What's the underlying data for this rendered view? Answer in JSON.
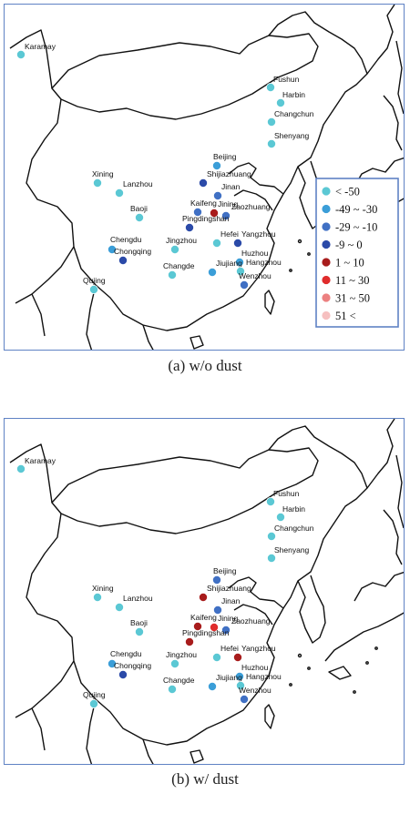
{
  "colors": {
    "frame": "#5f82c4",
    "land_line": "#111111"
  },
  "legend": {
    "items": [
      {
        "label": "< -50",
        "color": "#5bc8d4"
      },
      {
        "label": "-49 ~ -30",
        "color": "#3b9ed8"
      },
      {
        "label": "-29 ~ -10",
        "color": "#4070c4"
      },
      {
        "label": "-9 ~ 0",
        "color": "#2b4aa8"
      },
      {
        "label": "1 ~ 10",
        "color": "#a81c1c"
      },
      {
        "label": "11 ~ 30",
        "color": "#e02c2c"
      },
      {
        "label": "31 ~ 50",
        "color": "#ec8080"
      },
      {
        "label": "51 <",
        "color": "#f6c0c0"
      }
    ]
  },
  "cities": [
    "Karamay",
    "Fushun",
    "Harbin",
    "Changchun",
    "Shenyang",
    "Beijing",
    "Shijiazhuang",
    "Jinan",
    "Xining",
    "Lanzhou",
    "Kaifeng",
    "Jining",
    "Zaozhuang",
    "Pingdingshan",
    "Baoji",
    "Hefei",
    "Yangzhou",
    "Chengdu",
    "Jingzhou",
    "Chongqing",
    "Huzhou",
    "Jiujiang",
    "Hangzhou",
    "Changde",
    "Wenzhou",
    "Qujing"
  ],
  "panels": [
    {
      "caption": "(a) w/o dust",
      "show_legend": true,
      "values": {
        "Karamay": "< -50",
        "Fushun": "< -50",
        "Harbin": "< -50",
        "Changchun": "< -50",
        "Shenyang": "< -50",
        "Beijing": "-49 ~ -30",
        "Shijiazhuang": "-9 ~ 0",
        "Jinan": "-29 ~ -10",
        "Xining": "< -50",
        "Lanzhou": "< -50",
        "Kaifeng": "-29 ~ -10",
        "Jining": "1 ~ 10",
        "Zaozhuang": "-29 ~ -10",
        "Pingdingshan": "-9 ~ 0",
        "Baoji": "< -50",
        "Hefei": "< -50",
        "Yangzhou": "-9 ~ 0",
        "Chengdu": "-49 ~ -30",
        "Jingzhou": "< -50",
        "Chongqing": "-9 ~ 0",
        "Huzhou": "-49 ~ -30",
        "Jiujiang": "-49 ~ -30",
        "Hangzhou": "< -50",
        "Changde": "< -50",
        "Wenzhou": "-29 ~ -10",
        "Qujing": "< -50"
      }
    },
    {
      "caption": "(b) w/ dust",
      "show_legend": false,
      "values": {
        "Karamay": "< -50",
        "Fushun": "< -50",
        "Harbin": "< -50",
        "Changchun": "< -50",
        "Shenyang": "< -50",
        "Beijing": "-29 ~ -10",
        "Shijiazhuang": "1 ~ 10",
        "Jinan": "-29 ~ -10",
        "Xining": "< -50",
        "Lanzhou": "< -50",
        "Kaifeng": "1 ~ 10",
        "Jining": "11 ~ 30",
        "Zaozhuang": "-29 ~ -10",
        "Pingdingshan": "1 ~ 10",
        "Baoji": "< -50",
        "Hefei": "< -50",
        "Yangzhou": "1 ~ 10",
        "Chengdu": "-49 ~ -30",
        "Jingzhou": "< -50",
        "Chongqing": "-9 ~ 0",
        "Huzhou": "-49 ~ -30",
        "Jiujiang": "-49 ~ -30",
        "Hangzhou": "< -50",
        "Changde": "< -50",
        "Wenzhou": "-29 ~ -10",
        "Qujing": "< -50"
      }
    }
  ]
}
